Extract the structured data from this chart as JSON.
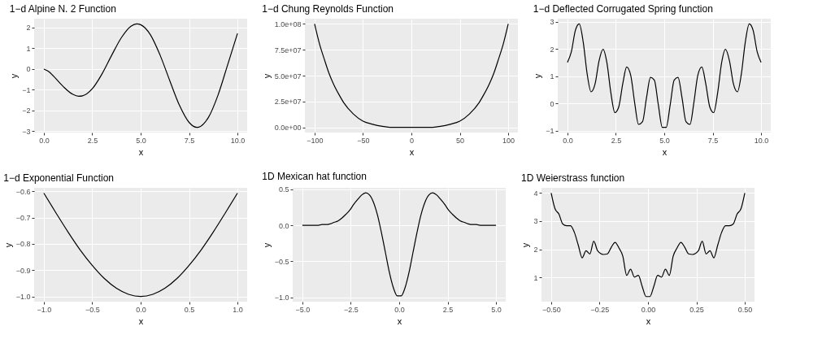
{
  "chart_data": [
    {
      "type": "line",
      "title": "1−d Alpine N. 2 Function",
      "xlabel": "x",
      "ylabel": "y",
      "color": "#000000",
      "grid": true,
      "x": [
        0,
        0.25,
        0.5,
        1,
        1.5,
        1.8,
        2,
        2.5,
        3,
        3.5,
        4,
        4.5,
        4.8,
        5,
        5.5,
        6,
        6.5,
        7,
        7.5,
        7.9,
        8,
        8.5,
        9,
        9.5,
        10
      ],
      "values": [
        0,
        -0.12,
        -0.34,
        -0.84,
        -1.22,
        -1.31,
        -1.29,
        -0.95,
        -0.24,
        0.66,
        1.51,
        2.07,
        2.18,
        2.14,
        1.66,
        0.68,
        -0.55,
        -1.74,
        -2.57,
        -2.81,
        -2.8,
        -2.33,
        -1.24,
        0.23,
        1.72
      ],
      "xlim": [
        -0.5,
        10.5
      ],
      "ylim": [
        -3.06,
        2.43
      ],
      "xticks": [
        {
          "value": 0,
          "label": "0.0"
        },
        {
          "value": 2.5,
          "label": "2.5"
        },
        {
          "value": 5,
          "label": "5.0"
        },
        {
          "value": 7.5,
          "label": "7.5"
        },
        {
          "value": 10,
          "label": "10.0"
        }
      ],
      "yticks": [
        -3,
        -2,
        -1,
        0,
        1,
        2
      ]
    },
    {
      "type": "line",
      "title": "1−d Chung Reynolds Function",
      "xlabel": "x",
      "ylabel": "y",
      "color": "#000000",
      "grid": true,
      "x": [
        -100,
        -95,
        -90,
        -85,
        -80,
        -75,
        -70,
        -60,
        -50,
        -40,
        -30,
        -20,
        -10,
        0,
        10,
        20,
        30,
        40,
        50,
        60,
        70,
        75,
        80,
        85,
        90,
        95,
        100
      ],
      "values": [
        100000000,
        81000000,
        66000000,
        52000000,
        41000000,
        32000000,
        24000000,
        13000000,
        6000000,
        3000000,
        1000000,
        0,
        0,
        0,
        0,
        0,
        1000000,
        3000000,
        6000000,
        13000000,
        24000000,
        32000000,
        41000000,
        52000000,
        66000000,
        81000000,
        100000000
      ],
      "xlim": [
        -110,
        110
      ],
      "ylim": [
        -5000000,
        105000000
      ],
      "xticks": [
        -100,
        -50,
        0,
        50,
        100
      ],
      "yticks": [
        {
          "value": 0,
          "label": "0.0e+00"
        },
        {
          "value": 25000000,
          "label": "2.5e+07"
        },
        {
          "value": 50000000,
          "label": "5.0e+07"
        },
        {
          "value": 75000000,
          "label": "7.5e+07"
        },
        {
          "value": 100000000,
          "label": "1.0e+08"
        }
      ]
    },
    {
      "type": "line",
      "title": "1−d Deflected Corrugated Spring function",
      "xlabel": "x",
      "ylabel": "y",
      "color": "#000000",
      "grid": true,
      "x": [
        0,
        0.2,
        0.41,
        0.61,
        0.82,
        1.02,
        1.22,
        1.43,
        1.63,
        1.84,
        2.04,
        2.24,
        2.45,
        2.65,
        2.86,
        3.06,
        3.27,
        3.47,
        3.67,
        3.88,
        4.08,
        4.29,
        4.49,
        4.69,
        4.9,
        5.1,
        5.31,
        5.51,
        5.71,
        5.92,
        6.12,
        6.33,
        6.53,
        6.73,
        6.94,
        7.14,
        7.35,
        7.55,
        7.76,
        7.96,
        8.16,
        8.37,
        8.57,
        8.78,
        8.98,
        9.18,
        9.39,
        9.59,
        9.8,
        10
      ],
      "values": [
        1.51,
        1.89,
        2.68,
        2.92,
        2.23,
        1.08,
        0.43,
        0.73,
        1.56,
        1.99,
        1.49,
        0.41,
        -0.33,
        -0.12,
        0.74,
        1.34,
        1.03,
        0.04,
        -0.76,
        -0.66,
        0.2,
        0.96,
        0.86,
        -0.03,
        -0.87,
        -0.87,
        -0.03,
        0.86,
        0.96,
        0.2,
        -0.66,
        -0.76,
        0.04,
        1.03,
        1.34,
        0.74,
        -0.12,
        -0.33,
        0.41,
        1.49,
        1.99,
        1.56,
        0.73,
        0.43,
        1.08,
        2.23,
        2.92,
        2.68,
        1.89,
        1.51
      ],
      "xlim": [
        -0.5,
        10.5
      ],
      "ylim": [
        -1.06,
        3.11
      ],
      "xticks": [
        {
          "value": 0,
          "label": "0.0"
        },
        {
          "value": 2.5,
          "label": "2.5"
        },
        {
          "value": 5,
          "label": "5.0"
        },
        {
          "value": 7.5,
          "label": "7.5"
        },
        {
          "value": 10,
          "label": "10.0"
        }
      ],
      "yticks": [
        -1,
        0,
        1,
        2,
        3
      ]
    },
    {
      "type": "line",
      "title": "1−d Exponential Function",
      "xlabel": "x",
      "ylabel": "y",
      "color": "#000000",
      "grid": true,
      "x": [
        -1,
        -0.875,
        -0.75,
        -0.625,
        -0.5,
        -0.375,
        -0.25,
        -0.125,
        0,
        0.125,
        0.25,
        0.375,
        0.5,
        0.625,
        0.75,
        0.875,
        1
      ],
      "values": [
        -0.607,
        -0.682,
        -0.755,
        -0.823,
        -0.882,
        -0.932,
        -0.969,
        -0.992,
        -1,
        -0.992,
        -0.969,
        -0.932,
        -0.882,
        -0.823,
        -0.755,
        -0.682,
        -0.607
      ],
      "xlim": [
        -1.1,
        1.1
      ],
      "ylim": [
        -1.02,
        -0.587
      ],
      "xticks": [
        {
          "value": -1,
          "label": "−1.0"
        },
        {
          "value": -0.5,
          "label": "−0.5"
        },
        {
          "value": 0,
          "label": "0.0"
        },
        {
          "value": 0.5,
          "label": "0.5"
        },
        {
          "value": 1,
          "label": "1.0"
        }
      ],
      "yticks": [
        {
          "value": -1,
          "label": "−1.0"
        },
        {
          "value": -0.9,
          "label": "−0.9"
        },
        {
          "value": -0.8,
          "label": "−0.8"
        },
        {
          "value": -0.7,
          "label": "−0.7"
        },
        {
          "value": -0.6,
          "label": "−0.6"
        }
      ]
    },
    {
      "type": "line",
      "title": "1D Mexican hat function",
      "xlabel": "x",
      "ylabel": "y",
      "color": "#000000",
      "grid": true,
      "x": [
        -5,
        -4.8,
        -4.59,
        -4.39,
        -4.18,
        -3.98,
        -3.78,
        -3.57,
        -3.37,
        -3.16,
        -2.96,
        -2.76,
        -2.55,
        -2.35,
        -2.14,
        -1.94,
        -1.73,
        -1.53,
        -1.33,
        -1.12,
        -0.92,
        -0.71,
        -0.51,
        -0.31,
        -0.1,
        0.1,
        0.31,
        0.51,
        0.71,
        0.92,
        1.12,
        1.33,
        1.53,
        1.73,
        1.94,
        2.14,
        2.35,
        2.55,
        2.76,
        2.96,
        3.16,
        3.37,
        3.57,
        3.78,
        3.98,
        4.18,
        4.39,
        4.59,
        4.8,
        5
      ],
      "values": [
        0,
        0,
        0,
        0,
        0,
        0.01,
        0.01,
        0.02,
        0.04,
        0.06,
        0.1,
        0.15,
        0.21,
        0.29,
        0.36,
        0.42,
        0.45,
        0.42,
        0.32,
        0.14,
        -0.1,
        -0.38,
        -0.65,
        -0.86,
        -0.98,
        -0.98,
        -0.86,
        -0.65,
        -0.38,
        -0.1,
        0.14,
        0.32,
        0.42,
        0.45,
        0.42,
        0.36,
        0.29,
        0.21,
        0.15,
        0.1,
        0.06,
        0.04,
        0.02,
        0.01,
        0.01,
        0,
        0,
        0,
        0,
        0
      ],
      "xlim": [
        -5.5,
        5.5
      ],
      "ylim": [
        -1.06,
        0.52
      ],
      "xticks": [
        {
          "value": -5,
          "label": "−5.0"
        },
        {
          "value": -2.5,
          "label": "−2.5"
        },
        {
          "value": 0,
          "label": "0.0"
        },
        {
          "value": 2.5,
          "label": "2.5"
        },
        {
          "value": 5,
          "label": "5.0"
        }
      ],
      "yticks": [
        {
          "value": -1,
          "label": "−1.0"
        },
        {
          "value": -0.5,
          "label": "−0.5"
        },
        {
          "value": 0,
          "label": "0.0"
        },
        {
          "value": 0.5,
          "label": "0.5"
        }
      ]
    },
    {
      "type": "line",
      "title": "1D Weierstrass function",
      "xlabel": "x",
      "ylabel": "y",
      "color": "#000000",
      "grid": true,
      "x": [
        -0.5,
        -0.48,
        -0.46,
        -0.44,
        -0.42,
        -0.4,
        -0.38,
        -0.36,
        -0.34,
        -0.32,
        -0.3,
        -0.28,
        -0.26,
        -0.23,
        -0.21,
        -0.19,
        -0.17,
        -0.15,
        -0.13,
        -0.11,
        -0.09,
        -0.07,
        -0.05,
        -0.03,
        -0.01,
        0.01,
        0.03,
        0.05,
        0.07,
        0.09,
        0.11,
        0.13,
        0.15,
        0.17,
        0.19,
        0.21,
        0.23,
        0.26,
        0.28,
        0.3,
        0.32,
        0.34,
        0.36,
        0.38,
        0.4,
        0.42,
        0.44,
        0.46,
        0.48,
        0.5
      ],
      "values": [
        4,
        3.44,
        3.25,
        2.9,
        2.84,
        2.84,
        2.6,
        2.15,
        1.7,
        1.95,
        1.84,
        2.29,
        1.95,
        1.82,
        1.84,
        2.07,
        2.25,
        2.05,
        1.76,
        1.08,
        1.3,
        1.02,
        1.08,
        0.69,
        0.33,
        0.33,
        0.69,
        1.08,
        1.02,
        1.3,
        1.08,
        1.76,
        2.05,
        2.25,
        2.07,
        1.84,
        1.82,
        1.95,
        2.29,
        1.84,
        1.95,
        1.7,
        2.15,
        2.6,
        2.84,
        2.84,
        2.9,
        3.25,
        3.44,
        4
      ],
      "xlim": [
        -0.55,
        0.55
      ],
      "ylim": [
        0.15,
        4.18
      ],
      "xticks": [
        {
          "value": -0.5,
          "label": "−0.50"
        },
        {
          "value": -0.25,
          "label": "−0.25"
        },
        {
          "value": 0,
          "label": "0.00"
        },
        {
          "value": 0.25,
          "label": "0.25"
        },
        {
          "value": 0.5,
          "label": "0.50"
        }
      ],
      "yticks": [
        1,
        2,
        3,
        4
      ]
    }
  ]
}
